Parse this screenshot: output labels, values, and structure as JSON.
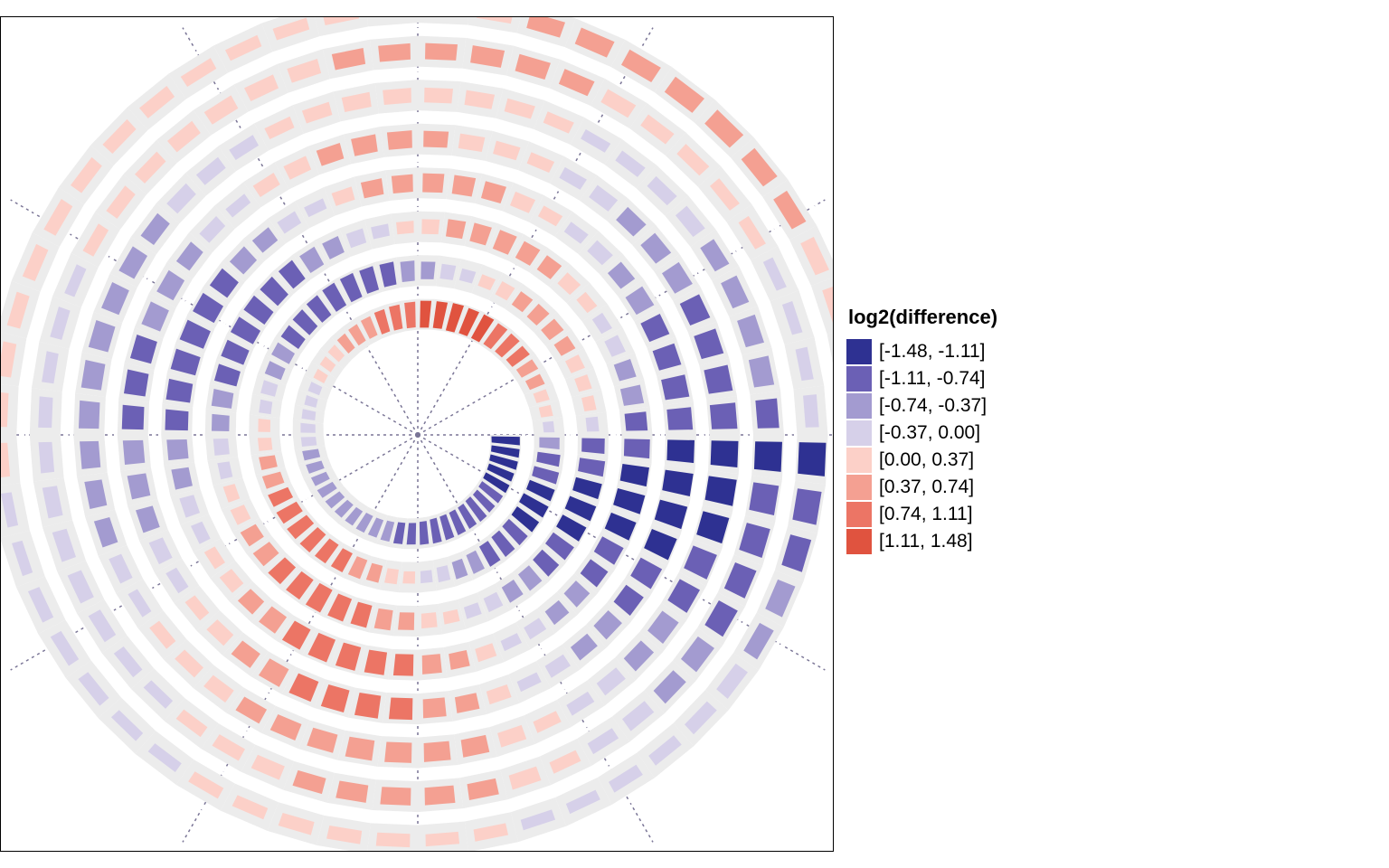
{
  "chart_data": {
    "type": "heatmap",
    "subtype": "spiral",
    "title": "",
    "legend": {
      "title": "log2(difference)",
      "position": "right",
      "bins": [
        {
          "label": "[-1.48, -1.11]",
          "min": -1.48,
          "max": -1.11,
          "color": "#2e3192"
        },
        {
          "label": "[-1.11, -0.74]",
          "min": -1.11,
          "max": -0.74,
          "color": "#6b60b5"
        },
        {
          "label": "[-0.74, -0.37]",
          "min": -0.74,
          "max": -0.37,
          "color": "#a39bd0"
        },
        {
          "label": "[-0.37, 0.00]",
          "min": -0.37,
          "max": 0.0,
          "color": "#d6d0e9"
        },
        {
          "label": "[0.00, 0.37]",
          "min": 0.0,
          "max": 0.37,
          "color": "#fcd0c8"
        },
        {
          "label": "[0.37, 0.74]",
          "min": 0.37,
          "max": 0.74,
          "color": "#f4a092"
        },
        {
          "label": "[0.74, 1.11]",
          "min": 0.74,
          "max": 1.11,
          "color": "#ec7565"
        },
        {
          "label": "[1.11, 1.48]",
          "min": 1.11,
          "max": 1.48,
          "color": "#e0533f"
        }
      ]
    },
    "spiral": {
      "turns": 8,
      "segments_per_turn": 52,
      "start_angle_deg": 0,
      "direction": "clockwise",
      "background_track_color": "#ececec",
      "track_separator_color": "#ffffff",
      "radial_guides": 12,
      "guide_color": "#7a7596"
    },
    "turn_levels": [
      [
        -1.3,
        -1.3,
        -1.3,
        -1.2,
        -1.2,
        -1.1,
        -1.0,
        -1.1,
        -1.0,
        -1.0,
        -1.0,
        -1.0,
        -0.9,
        -0.8,
        -0.8,
        -0.7,
        -0.6,
        -0.6,
        -0.5,
        -0.5,
        -0.5,
        -0.5,
        -0.4,
        -0.4,
        -0.4,
        -0.3,
        -0.3,
        -0.2,
        -0.1,
        -0.1,
        0.1,
        0.2,
        0.3,
        0.5,
        0.6,
        0.7,
        0.9,
        1.0,
        1.1,
        1.2,
        1.2,
        1.3,
        1.2,
        1.2,
        1.1,
        1.0,
        0.8,
        0.6,
        0.4,
        0.2,
        0.1,
        0.0
      ],
      [
        -0.7,
        -0.9,
        -1.1,
        -1.2,
        -1.3,
        -1.2,
        -1.1,
        -1.0,
        -0.9,
        -0.7,
        -0.5,
        -0.3,
        -0.1,
        0.1,
        0.3,
        0.5,
        0.7,
        0.8,
        0.9,
        1.0,
        1.0,
        0.9,
        0.8,
        0.6,
        0.4,
        0.2,
        0.1,
        -0.1,
        -0.3,
        -0.5,
        -0.7,
        -0.8,
        -0.9,
        -1.0,
        -1.1,
        -1.1,
        -1.0,
        -0.9,
        -0.7,
        -0.5,
        -0.3,
        -0.1,
        0.1,
        0.3,
        0.4,
        0.5,
        0.5,
        0.4,
        0.3,
        0.2,
        0.1,
        -0.1
      ],
      [
        -0.9,
        -1.1,
        -1.2,
        -1.3,
        -1.2,
        -1.1,
        -0.9,
        -0.7,
        -0.5,
        -0.3,
        -0.1,
        0.1,
        0.3,
        0.5,
        0.7,
        0.9,
        1.0,
        1.1,
        1.0,
        0.9,
        0.7,
        0.5,
        0.3,
        0.1,
        -0.1,
        -0.3,
        -0.5,
        -0.7,
        -0.9,
        -1.0,
        -1.1,
        -1.1,
        -1.0,
        -0.9,
        -0.7,
        -0.5,
        -0.3,
        -0.1,
        0.1,
        0.3,
        0.5,
        0.6,
        0.7,
        0.6,
        0.5,
        0.3,
        0.1,
        -0.1,
        -0.3,
        -0.5,
        -0.7,
        -0.8
      ],
      [
        -1.1,
        -1.2,
        -1.3,
        -1.2,
        -1.0,
        -0.8,
        -0.6,
        -0.4,
        -0.2,
        0.0,
        0.2,
        0.4,
        0.6,
        0.8,
        0.9,
        1.0,
        1.0,
        0.9,
        0.7,
        0.5,
        0.3,
        0.1,
        -0.1,
        -0.3,
        -0.5,
        -0.7,
        -0.9,
        -1.0,
        -1.1,
        -1.1,
        -1.0,
        -0.8,
        -0.6,
        -0.4,
        -0.2,
        0.0,
        0.2,
        0.4,
        0.5,
        0.6,
        0.6,
        0.5,
        0.3,
        0.1,
        -0.1,
        -0.3,
        -0.5,
        -0.7,
        -0.8,
        -0.9,
        -1.0,
        -1.0
      ],
      [
        -1.2,
        -1.3,
        -1.3,
        -1.2,
        -1.0,
        -0.8,
        -0.6,
        -0.4,
        -0.2,
        0.0,
        0.2,
        0.4,
        0.6,
        0.8,
        0.9,
        0.9,
        0.8,
        0.7,
        0.5,
        0.3,
        0.1,
        -0.1,
        -0.3,
        -0.5,
        -0.6,
        -0.7,
        -0.8,
        -0.8,
        -0.8,
        -0.7,
        -0.6,
        -0.4,
        -0.2,
        0.0,
        0.2,
        0.3,
        0.4,
        0.5,
        0.5,
        0.4,
        0.3,
        0.2,
        0.1,
        -0.1,
        -0.3,
        -0.5,
        -0.6,
        -0.7,
        -0.8,
        -0.9,
        -1.0,
        -1.1
      ],
      [
        -1.2,
        -1.3,
        -1.2,
        -1.1,
        -0.9,
        -0.7,
        -0.5,
        -0.3,
        -0.1,
        0.1,
        0.3,
        0.5,
        0.6,
        0.7,
        0.7,
        0.6,
        0.5,
        0.4,
        0.3,
        0.2,
        0.1,
        0.0,
        -0.2,
        -0.4,
        -0.5,
        -0.6,
        -0.7,
        -0.7,
        -0.7,
        -0.6,
        -0.5,
        -0.4,
        -0.3,
        -0.2,
        -0.1,
        0.1,
        0.2,
        0.3,
        0.3,
        0.3,
        0.3,
        0.2,
        0.1,
        0.0,
        -0.1,
        -0.2,
        -0.3,
        -0.4,
        -0.5,
        -0.6,
        -0.7,
        -0.8
      ],
      [
        -1.2,
        -1.1,
        -1.0,
        -0.9,
        -0.8,
        -0.7,
        -0.5,
        -0.3,
        -0.1,
        0.1,
        0.3,
        0.4,
        0.5,
        0.5,
        0.5,
        0.4,
        0.3,
        0.2,
        0.1,
        0.0,
        -0.1,
        -0.2,
        -0.3,
        -0.3,
        -0.3,
        -0.2,
        -0.2,
        -0.1,
        -0.1,
        0.0,
        0.1,
        0.2,
        0.2,
        0.3,
        0.3,
        0.3,
        0.3,
        0.4,
        0.4,
        0.4,
        0.5,
        0.5,
        0.4,
        0.3,
        0.2,
        0.2,
        0.1,
        0.1,
        0.0,
        0.0,
        -0.1,
        -0.2
      ],
      [
        -1.2,
        -1.0,
        -0.8,
        -0.6,
        -0.4,
        -0.3,
        -0.2,
        -0.1,
        -0.1,
        0.0,
        0.0,
        0.1,
        0.1,
        0.2,
        0.2,
        0.2,
        0.1,
        0.1,
        0.0,
        0.0,
        -0.1,
        -0.1,
        -0.1,
        0.0,
        0.0,
        0.1,
        0.1,
        0.2,
        0.2,
        0.2,
        0.2,
        0.2,
        0.2,
        0.2,
        0.1,
        0.1,
        0.1,
        0.1,
        0.2,
        0.2,
        0.3,
        0.4,
        0.5,
        0.5,
        0.6,
        0.6,
        0.5,
        0.4,
        0.3,
        0.2,
        0.1,
        0.1
      ]
    ]
  }
}
